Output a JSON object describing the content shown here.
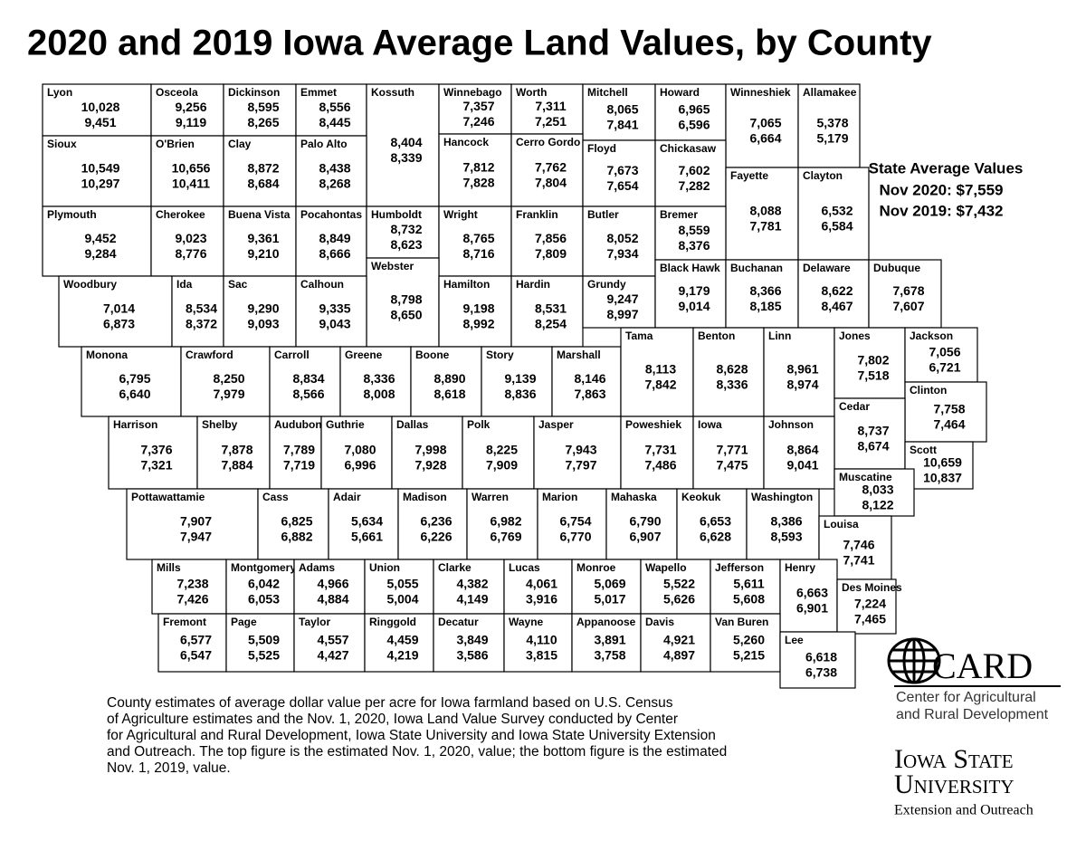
{
  "title": "2020 and 2019 Iowa Average Land Values, by County",
  "state_average": {
    "heading": "State Average Values",
    "lines": [
      "Nov 2020: $7,559",
      "Nov 2019: $7,432"
    ]
  },
  "counties": [
    [
      "Lyon",
      "10,028",
      "9,451"
    ],
    [
      "Osceola",
      "9,256",
      "9,119"
    ],
    [
      "Dickinson",
      "8,595",
      "8,265"
    ],
    [
      "Emmet",
      "8,556",
      "8,445"
    ],
    [
      "Kossuth",
      "8,404",
      "8,339"
    ],
    [
      "Winnebago",
      "7,357",
      "7,246"
    ],
    [
      "Worth",
      "7,311",
      "7,251"
    ],
    [
      "Mitchell",
      "8,065",
      "7,841"
    ],
    [
      "Howard",
      "6,965",
      "6,596"
    ],
    [
      "Winneshiek",
      "7,065",
      "6,664"
    ],
    [
      "Allamakee",
      "5,378",
      "5,179"
    ],
    [
      "Sioux",
      "10,549",
      "10,297"
    ],
    [
      "O'Brien",
      "10,656",
      "10,411"
    ],
    [
      "Clay",
      "8,872",
      "8,684"
    ],
    [
      "Palo Alto",
      "8,438",
      "8,268"
    ],
    [
      "Hancock",
      "7,812",
      "7,828"
    ],
    [
      "Cerro Gordo",
      "7,762",
      "7,804"
    ],
    [
      "Floyd",
      "7,673",
      "7,654"
    ],
    [
      "Chickasaw",
      "7,602",
      "7,282"
    ],
    [
      "Fayette",
      "8,088",
      "7,781"
    ],
    [
      "Clayton",
      "6,532",
      "6,584"
    ],
    [
      "Plymouth",
      "9,452",
      "9,284"
    ],
    [
      "Cherokee",
      "9,023",
      "8,776"
    ],
    [
      "Buena Vista",
      "9,361",
      "9,210"
    ],
    [
      "Pocahontas",
      "8,849",
      "8,666"
    ],
    [
      "Humboldt",
      "8,732",
      "8,623"
    ],
    [
      "Wright",
      "8,765",
      "8,716"
    ],
    [
      "Franklin",
      "7,856",
      "7,809"
    ],
    [
      "Butler",
      "8,052",
      "7,934"
    ],
    [
      "Bremer",
      "8,559",
      "8,376"
    ],
    [
      "Webster",
      "8,798",
      "8,650"
    ],
    [
      "Woodbury",
      "7,014",
      "6,873"
    ],
    [
      "Ida",
      "8,534",
      "8,372"
    ],
    [
      "Sac",
      "9,290",
      "9,093"
    ],
    [
      "Calhoun",
      "9,335",
      "9,043"
    ],
    [
      "Hamilton",
      "9,198",
      "8,992"
    ],
    [
      "Hardin",
      "8,531",
      "8,254"
    ],
    [
      "Grundy",
      "9,247",
      "8,997"
    ],
    [
      "Black Hawk",
      "9,179",
      "9,014"
    ],
    [
      "Buchanan",
      "8,366",
      "8,185"
    ],
    [
      "Delaware",
      "8,622",
      "8,467"
    ],
    [
      "Dubuque",
      "7,678",
      "7,607"
    ],
    [
      "Monona",
      "6,795",
      "6,640"
    ],
    [
      "Crawford",
      "8,250",
      "7,979"
    ],
    [
      "Carroll",
      "8,834",
      "8,566"
    ],
    [
      "Greene",
      "8,336",
      "8,008"
    ],
    [
      "Boone",
      "8,890",
      "8,618"
    ],
    [
      "Story",
      "9,139",
      "8,836"
    ],
    [
      "Marshall",
      "8,146",
      "7,863"
    ],
    [
      "Tama",
      "8,113",
      "7,842"
    ],
    [
      "Benton",
      "8,628",
      "8,336"
    ],
    [
      "Linn",
      "8,961",
      "8,974"
    ],
    [
      "Jones",
      "7,802",
      "7,518"
    ],
    [
      "Jackson",
      "7,056",
      "6,721"
    ],
    [
      "Clinton",
      "7,758",
      "7,464"
    ],
    [
      "Cedar",
      "8,737",
      "8,674"
    ],
    [
      "Harrison",
      "7,376",
      "7,321"
    ],
    [
      "Shelby",
      "7,878",
      "7,884"
    ],
    [
      "Audubon",
      "7,789",
      "7,719"
    ],
    [
      "Guthrie",
      "7,080",
      "6,996"
    ],
    [
      "Dallas",
      "7,998",
      "7,928"
    ],
    [
      "Polk",
      "8,225",
      "7,909"
    ],
    [
      "Jasper",
      "7,943",
      "7,797"
    ],
    [
      "Poweshiek",
      "7,731",
      "7,486"
    ],
    [
      "Iowa",
      "7,771",
      "7,475"
    ],
    [
      "Johnson",
      "8,864",
      "9,041"
    ],
    [
      "Scott",
      "10,659",
      "10,837"
    ],
    [
      "Muscatine",
      "8,033",
      "8,122"
    ],
    [
      "Pottawattamie",
      "7,907",
      "7,947"
    ],
    [
      "Cass",
      "6,825",
      "6,882"
    ],
    [
      "Adair",
      "5,634",
      "5,661"
    ],
    [
      "Madison",
      "6,236",
      "6,226"
    ],
    [
      "Warren",
      "6,982",
      "6,769"
    ],
    [
      "Marion",
      "6,754",
      "6,770"
    ],
    [
      "Mahaska",
      "6,790",
      "6,907"
    ],
    [
      "Keokuk",
      "6,653",
      "6,628"
    ],
    [
      "Washington",
      "8,386",
      "8,593"
    ],
    [
      "Louisa",
      "7,746",
      "7,741"
    ],
    [
      "Mills",
      "7,238",
      "7,426"
    ],
    [
      "Montgomery",
      "6,042",
      "6,053"
    ],
    [
      "Adams",
      "4,966",
      "4,884"
    ],
    [
      "Union",
      "5,055",
      "5,004"
    ],
    [
      "Clarke",
      "4,382",
      "4,149"
    ],
    [
      "Lucas",
      "4,061",
      "3,916"
    ],
    [
      "Monroe",
      "5,069",
      "5,017"
    ],
    [
      "Wapello",
      "5,522",
      "5,626"
    ],
    [
      "Jefferson",
      "5,611",
      "5,608"
    ],
    [
      "Henry",
      "6,663",
      "6,901"
    ],
    [
      "Des Moines",
      "7,224",
      "7,465"
    ],
    [
      "Fremont",
      "6,577",
      "6,547"
    ],
    [
      "Page",
      "5,509",
      "5,525"
    ],
    [
      "Taylor",
      "4,557",
      "4,427"
    ],
    [
      "Ringgold",
      "4,459",
      "4,219"
    ],
    [
      "Decatur",
      "3,849",
      "3,586"
    ],
    [
      "Wayne",
      "4,110",
      "3,815"
    ],
    [
      "Appanoose",
      "3,891",
      "3,758"
    ],
    [
      "Davis",
      "4,921",
      "4,897"
    ],
    [
      "Van Buren",
      "5,260",
      "5,215"
    ],
    [
      "Lee",
      "6,618",
      "6,738"
    ]
  ],
  "footnote": [
    "County estimates of average dollar value per acre for Iowa farmland based on U.S. Census",
    "of Agriculture estimates and the Nov. 1, 2020, Iowa Land Value Survey conducted by Center",
    "for Agricultural and Rural Development, Iowa State University and Iowa State University Extension",
    "and Outreach. The top figure is the estimated Nov. 1, 2020, value; the bottom figure is the estimated",
    "Nov. 1, 2019, value."
  ],
  "logos": {
    "card": "CARD",
    "card_lines": [
      "Center for Agricultural",
      "and Rural Development"
    ],
    "isu": [
      "Iowa State",
      "University"
    ],
    "isu_sub": "Extension and Outreach"
  }
}
